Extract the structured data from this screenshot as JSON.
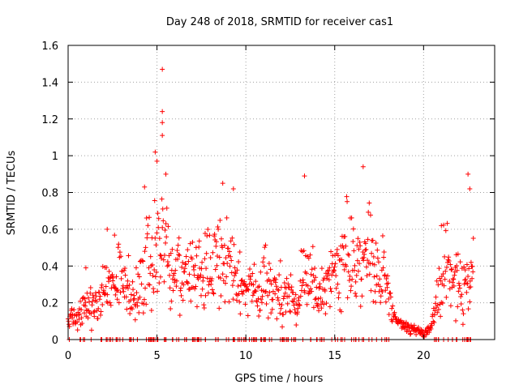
{
  "chart_data": {
    "type": "scatter",
    "title": "Day 248 of 2018, SRMTID for receiver cas1",
    "xlabel": "GPS time / hours",
    "ylabel": "SRMTID / TECUs",
    "xlim": [
      0,
      24
    ],
    "ylim": [
      0,
      1.6
    ],
    "xticks": [
      0,
      5,
      10,
      15,
      20
    ],
    "xtick_labels": [
      "0",
      "5",
      "10",
      "15",
      "20"
    ],
    "yticks": [
      0,
      0.2,
      0.4,
      0.6,
      0.8,
      1,
      1.2,
      1.4,
      1.6
    ],
    "ytick_labels": [
      "0",
      "0.2",
      "0.4",
      "0.6",
      "0.8",
      "1",
      "1.2",
      "1.4",
      "1.6"
    ],
    "grid": true,
    "marker": "+",
    "color": "#ff0000",
    "series": [
      {
        "name": "SRMTID cas1",
        "profile_hours": [
          0,
          0.3,
          0.7,
          1.0,
          1.5,
          2.0,
          2.4,
          2.8,
          3.2,
          3.6,
          4.0,
          4.4,
          4.8,
          5.1,
          5.4,
          5.8,
          6.3,
          7.0,
          7.6,
          8.2,
          8.7,
          9.2,
          9.7,
          10.3,
          11.0,
          11.5,
          12.0,
          12.5,
          12.9,
          13.2,
          13.5,
          14.0,
          14.5,
          15.0,
          15.5,
          16.0,
          16.5,
          17.0,
          17.5,
          17.9,
          18.2,
          18.5,
          18.8,
          19.2,
          19.6,
          20.0,
          20.3,
          20.6,
          20.9,
          21.2,
          21.6,
          22.0,
          22.3,
          22.6,
          22.8
        ],
        "profile_values": [
          0.1,
          0.11,
          0.14,
          0.19,
          0.2,
          0.22,
          0.3,
          0.36,
          0.3,
          0.22,
          0.27,
          0.42,
          0.4,
          0.5,
          0.55,
          0.38,
          0.32,
          0.35,
          0.36,
          0.38,
          0.42,
          0.37,
          0.3,
          0.27,
          0.3,
          0.26,
          0.28,
          0.22,
          0.18,
          0.38,
          0.36,
          0.22,
          0.27,
          0.35,
          0.4,
          0.43,
          0.47,
          0.42,
          0.32,
          0.28,
          0.18,
          0.1,
          0.08,
          0.06,
          0.05,
          0.04,
          0.05,
          0.12,
          0.3,
          0.42,
          0.32,
          0.3,
          0.3,
          0.36,
          0.36
        ],
        "spikes": [
          {
            "x": 5.3,
            "y": 1.47
          },
          {
            "x": 5.3,
            "y": 1.24
          },
          {
            "x": 5.3,
            "y": 1.18
          },
          {
            "x": 5.3,
            "y": 1.11
          },
          {
            "x": 4.9,
            "y": 1.02
          },
          {
            "x": 5.0,
            "y": 0.97
          },
          {
            "x": 5.5,
            "y": 0.9
          },
          {
            "x": 13.3,
            "y": 0.89
          },
          {
            "x": 16.6,
            "y": 0.94
          },
          {
            "x": 22.5,
            "y": 0.9
          },
          {
            "x": 4.3,
            "y": 0.83
          },
          {
            "x": 9.3,
            "y": 0.82
          },
          {
            "x": 8.7,
            "y": 0.85
          },
          {
            "x": 22.6,
            "y": 0.82
          },
          {
            "x": 2.2,
            "y": 0.6
          },
          {
            "x": 21.0,
            "y": 0.62
          },
          {
            "x": 1.0,
            "y": 0.39
          }
        ]
      }
    ]
  }
}
